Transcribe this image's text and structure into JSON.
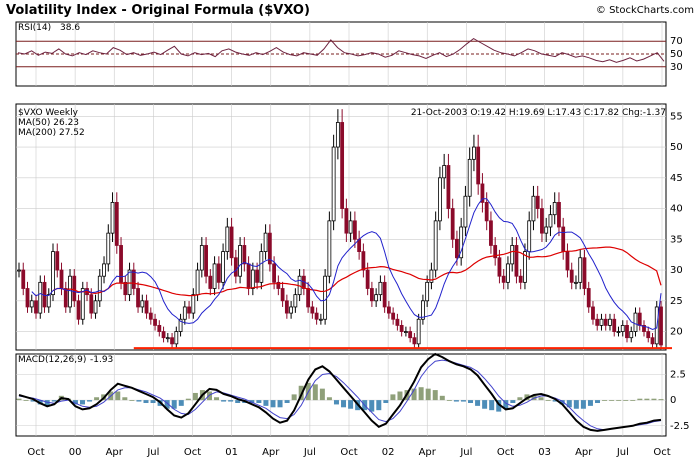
{
  "header": {
    "title": "Volatility Index - Original Formula ($VXO)",
    "copyright": "© StockCharts.com"
  },
  "colors": {
    "panel_bg": "#ffffff",
    "grid": "#cccccc",
    "frame": "#000000",
    "candle_up": "#000000",
    "candle_down": "#8b0a2a",
    "ma50": "#2222cc",
    "ma200": "#dd0000",
    "support": "#ff2200",
    "rsi_line": "#6e2340",
    "rsi_bound": "#7a1f1f",
    "macd_line": "#000000",
    "macd_signal": "#4444cc",
    "hist_pos": "#8fa07a",
    "hist_neg": "#4d8db8"
  },
  "x_axis": {
    "labels": [
      "Oct",
      "00",
      "Apr",
      "Jul",
      "Oct",
      "01",
      "Apr",
      "Jul",
      "Oct",
      "02",
      "Apr",
      "Jul",
      "Oct",
      "03",
      "Apr",
      "Jul",
      "Oct"
    ]
  },
  "rsi": {
    "label": "RSI(14)",
    "value": "38.6",
    "ticks": [
      "70",
      "50",
      "30"
    ]
  },
  "price": {
    "symbol_label": "$VXO Weekly",
    "ma50_label": "MA(50) 26.23",
    "ma200_label": "MA(200) 27.52",
    "ohlc_text": "21-Oct-2003 O:19.42 H:19.69 L:17.43 C:17.82 Chg:-1.37",
    "ticks": [
      "55",
      "50",
      "45",
      "40",
      "35",
      "30",
      "25",
      "20"
    ]
  },
  "macd": {
    "label": "MACD(12,26,9)",
    "value": "-1.93",
    "ticks": [
      "2.5",
      "0",
      "-2.5"
    ]
  },
  "chart_data": [
    {
      "type": "line",
      "name": "RSI(14)",
      "ylim": [
        0,
        100
      ],
      "reference_lines": [
        70,
        50,
        30
      ],
      "x_range": [
        "1999-10",
        "2003-10"
      ],
      "values": [
        52,
        50,
        55,
        48,
        53,
        51,
        58,
        50,
        47,
        52,
        49,
        55,
        52,
        50,
        60,
        56,
        49,
        52,
        48,
        50,
        53,
        49,
        56,
        62,
        50,
        47,
        52,
        49,
        51,
        46,
        55,
        58,
        53,
        50,
        48,
        52,
        49,
        54,
        60,
        53,
        49,
        47,
        52,
        50,
        48,
        58,
        72,
        60,
        52,
        50,
        47,
        49,
        52,
        50,
        45,
        48,
        55,
        52,
        49,
        47,
        43,
        48,
        52,
        46,
        50,
        57,
        66,
        74,
        68,
        62,
        56,
        52,
        50,
        47,
        52,
        58,
        55,
        50,
        48,
        46,
        52,
        49,
        45,
        47,
        44,
        40,
        38,
        41,
        37,
        40,
        44,
        39,
        42,
        47,
        52,
        38.6
      ]
    },
    {
      "type": "line",
      "name": "$VXO Weekly",
      "ylim": [
        17,
        57
      ],
      "x_range": [
        "1999-10",
        "2003-10-21"
      ],
      "values": [
        30,
        27,
        24,
        25,
        23,
        28,
        24,
        26,
        33,
        30,
        27,
        24,
        29,
        25,
        22,
        27,
        26,
        23,
        25,
        29,
        31,
        36,
        41,
        34,
        28,
        26,
        30,
        27,
        24,
        25,
        23,
        22,
        21,
        20,
        19,
        19,
        18,
        20,
        22,
        24,
        23,
        26,
        30,
        34,
        29,
        27,
        31,
        28,
        33,
        37,
        32,
        29,
        34,
        31,
        27,
        30,
        28,
        33,
        36,
        31,
        28,
        27,
        25,
        23,
        24,
        26,
        29,
        27,
        24,
        23,
        22,
        22,
        29,
        38,
        50,
        54,
        40,
        36,
        38,
        35,
        33,
        30,
        27,
        25,
        26,
        28,
        24,
        23,
        22,
        21,
        20,
        20,
        19,
        18,
        22,
        25,
        28,
        30,
        38,
        45,
        47,
        40,
        35,
        32,
        37,
        42,
        48,
        50,
        44,
        41,
        38,
        34,
        32,
        29,
        28,
        31,
        34,
        29,
        28,
        33,
        38,
        42,
        40,
        36,
        37,
        39,
        41,
        37,
        33,
        30,
        28,
        28,
        32,
        27,
        24,
        22,
        21,
        22,
        21,
        22,
        20,
        20,
        21,
        19,
        20,
        23,
        21,
        20,
        19,
        18,
        24,
        17.82
      ],
      "series": [
        {
          "name": "MA(50)",
          "last": 26.23
        },
        {
          "name": "MA(200)",
          "last": 27.52
        }
      ],
      "support_level": 17.3,
      "last_bar": {
        "date": "21-Oct-2003",
        "open": 19.42,
        "high": 19.69,
        "low": 17.43,
        "close": 17.82,
        "change": -1.37
      }
    },
    {
      "type": "line",
      "name": "MACD(12,26,9)",
      "ylim": [
        -3.5,
        4.5
      ],
      "x_range": [
        "1999-10",
        "2003-10"
      ],
      "macd": [
        0.5,
        0.3,
        0.1,
        -0.3,
        -0.6,
        -0.4,
        0.2,
        0.1,
        -0.6,
        -0.9,
        -0.8,
        -0.4,
        0.2,
        1.0,
        1.6,
        1.4,
        1.2,
        0.9,
        0.6,
        0.3,
        -0.2,
        -0.9,
        -1.5,
        -1.7,
        -1.3,
        -0.4,
        0.5,
        1.1,
        1.0,
        0.6,
        0.4,
        0.1,
        -0.1,
        -0.4,
        -0.7,
        -1.2,
        -1.8,
        -2.2,
        -2.0,
        -1.0,
        0.5,
        2.0,
        3.0,
        3.3,
        2.8,
        2.0,
        1.2,
        0.4,
        -0.4,
        -1.2,
        -2.0,
        -2.6,
        -2.3,
        -1.4,
        -0.5,
        0.6,
        1.8,
        3.2,
        4.0,
        4.5,
        4.2,
        3.8,
        3.5,
        3.3,
        3.0,
        2.4,
        1.5,
        0.6,
        -0.4,
        -0.9,
        -0.8,
        -0.3,
        0.2,
        0.5,
        0.6,
        0.4,
        0.1,
        -0.4,
        -1.2,
        -2.0,
        -2.6,
        -2.9,
        -3.0,
        -2.9,
        -2.8,
        -2.7,
        -2.6,
        -2.5,
        -2.3,
        -2.2,
        -2.0,
        -1.93
      ],
      "signal": [
        0.4,
        0.3,
        0.2,
        0.0,
        -0.2,
        -0.3,
        -0.1,
        0.0,
        -0.3,
        -0.6,
        -0.7,
        -0.6,
        -0.2,
        0.4,
        1.0,
        1.2,
        1.2,
        1.0,
        0.8,
        0.5,
        0.2,
        -0.3,
        -0.9,
        -1.3,
        -1.4,
        -0.9,
        -0.2,
        0.5,
        0.8,
        0.7,
        0.5,
        0.3,
        0.1,
        -0.2,
        -0.5,
        -0.8,
        -1.3,
        -1.7,
        -1.8,
        -1.4,
        -0.5,
        0.8,
        1.9,
        2.5,
        2.6,
        2.3,
        1.7,
        1.0,
        0.3,
        -0.5,
        -1.2,
        -1.9,
        -2.1,
        -1.8,
        -1.1,
        -0.1,
        1.0,
        2.3,
        3.2,
        3.8,
        3.9,
        3.8,
        3.6,
        3.4,
        3.2,
        2.8,
        2.1,
        1.3,
        0.4,
        -0.3,
        -0.6,
        -0.5,
        -0.2,
        0.2,
        0.4,
        0.4,
        0.2,
        -0.1,
        -0.7,
        -1.4,
        -2.0,
        -2.5,
        -2.8,
        -2.9,
        -2.8,
        -2.7,
        -2.6,
        -2.5,
        -2.4,
        -2.3,
        -2.1,
        -2.0
      ]
    }
  ]
}
